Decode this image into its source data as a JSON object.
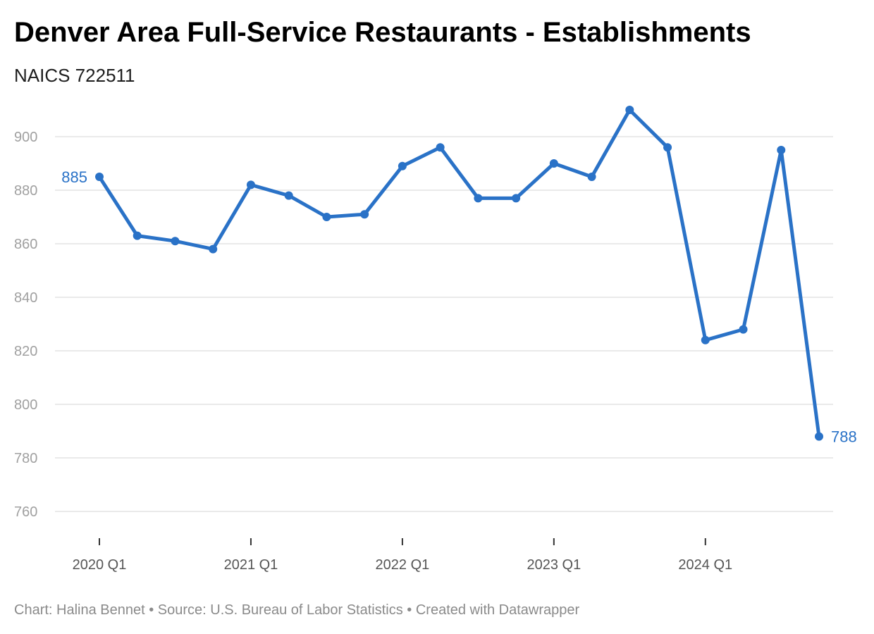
{
  "title": "Denver Area Full-Service Restaurants - Establishments",
  "subtitle": "NAICS 722511",
  "footer": "Chart: Halina Bennet • Source: U.S. Bureau of Labor Statistics • Created with Datawrapper",
  "colors": {
    "line": "#2a72c7",
    "grid": "#e3e3e3",
    "axis": "#333333"
  },
  "chart_data": {
    "type": "line",
    "title": "Denver Area Full-Service Restaurants - Establishments",
    "subtitle": "NAICS 722511",
    "x": [
      "2020 Q1",
      "2020 Q2",
      "2020 Q3",
      "2020 Q4",
      "2021 Q1",
      "2021 Q2",
      "2021 Q3",
      "2021 Q4",
      "2022 Q1",
      "2022 Q2",
      "2022 Q3",
      "2022 Q4",
      "2023 Q1",
      "2023 Q2",
      "2023 Q3",
      "2023 Q4",
      "2024 Q1",
      "2024 Q2",
      "2024 Q3",
      "2024 Q4"
    ],
    "series": [
      {
        "values": [
          885,
          863,
          861,
          858,
          882,
          878,
          870,
          871,
          889,
          896,
          877,
          877,
          890,
          885,
          910,
          896,
          824,
          828,
          895,
          788
        ]
      }
    ],
    "ylim": [
      750,
      910
    ],
    "yticks": [
      900,
      880,
      860,
      840,
      820,
      800,
      780,
      760
    ],
    "xticks": [
      "2020 Q1",
      "2021 Q1",
      "2022 Q1",
      "2023 Q1",
      "2024 Q1"
    ],
    "data_labels": [
      {
        "x": "2020 Q1",
        "text": "885",
        "side": "left"
      },
      {
        "x": "2024 Q4",
        "text": "788",
        "side": "right"
      }
    ],
    "grid": true,
    "legend": "none"
  }
}
